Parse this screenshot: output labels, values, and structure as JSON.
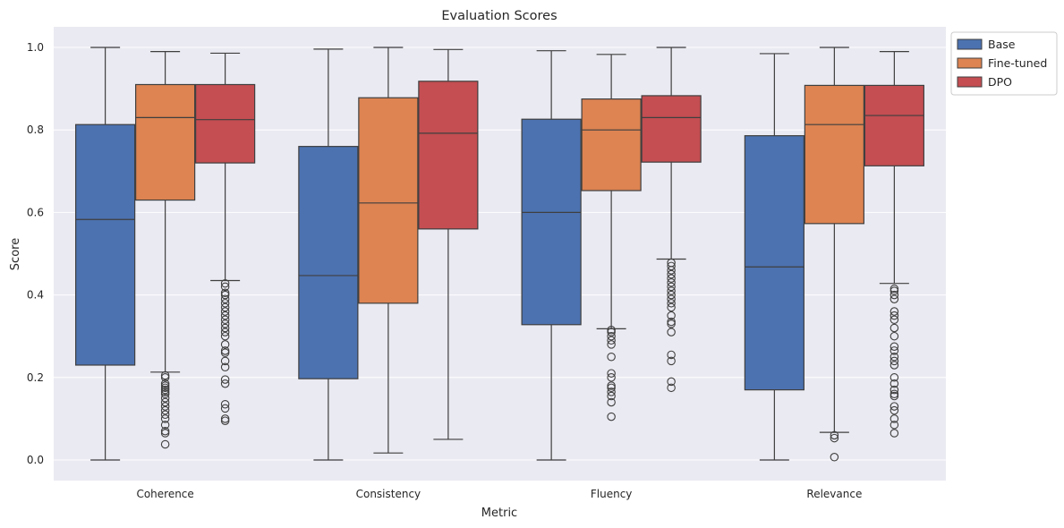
{
  "chart_data": {
    "type": "box",
    "title": "Evaluation Scores",
    "xlabel": "Metric",
    "ylabel": "Score",
    "ylim": [
      -0.05,
      1.05
    ],
    "yticks": [
      "0.0",
      "0.2",
      "0.4",
      "0.6",
      "0.8",
      "1.0"
    ],
    "categories": [
      "Coherence",
      "Consistency",
      "Fluency",
      "Relevance"
    ],
    "grid": true,
    "legend_position": "outside top-right",
    "series": [
      {
        "name": "Base",
        "color": "#4C72B0",
        "boxes": [
          {
            "whislo": 0.0,
            "q1": 0.23,
            "med": 0.583,
            "q3": 0.813,
            "whishi": 1.0,
            "fliers": []
          },
          {
            "whislo": 0.0,
            "q1": 0.197,
            "med": 0.447,
            "q3": 0.76,
            "whishi": 0.996,
            "fliers": []
          },
          {
            "whislo": 0.0,
            "q1": 0.328,
            "med": 0.6,
            "q3": 0.826,
            "whishi": 0.992,
            "fliers": []
          },
          {
            "whislo": 0.0,
            "q1": 0.17,
            "med": 0.468,
            "q3": 0.786,
            "whishi": 0.985,
            "fliers": []
          }
        ]
      },
      {
        "name": "Fine-tuned",
        "color": "#DD8452",
        "boxes": [
          {
            "whislo": 0.213,
            "q1": 0.63,
            "med": 0.83,
            "q3": 0.91,
            "whishi": 0.99,
            "fliers": [
              0.205,
              0.2,
              0.185,
              0.18,
              0.175,
              0.17,
              0.165,
              0.16,
              0.15,
              0.14,
              0.13,
              0.12,
              0.11,
              0.1,
              0.085,
              0.07,
              0.065,
              0.038
            ]
          },
          {
            "whislo": 0.017,
            "q1": 0.38,
            "med": 0.623,
            "q3": 0.878,
            "whishi": 1.0,
            "fliers": []
          },
          {
            "whislo": 0.318,
            "q1": 0.653,
            "med": 0.8,
            "q3": 0.875,
            "whishi": 0.983,
            "fliers": [
              0.315,
              0.31,
              0.3,
              0.29,
              0.28,
              0.25,
              0.21,
              0.2,
              0.18,
              0.175,
              0.165,
              0.155,
              0.14,
              0.105
            ]
          },
          {
            "whislo": 0.067,
            "q1": 0.573,
            "med": 0.813,
            "q3": 0.908,
            "whishi": 1.0,
            "fliers": [
              0.06,
              0.053,
              0.007
            ]
          }
        ]
      },
      {
        "name": "DPO",
        "color": "#C44E52",
        "boxes": [
          {
            "whislo": 0.435,
            "q1": 0.72,
            "med": 0.825,
            "q3": 0.91,
            "whishi": 0.986,
            "fliers": [
              0.428,
              0.42,
              0.405,
              0.4,
              0.39,
              0.38,
              0.37,
              0.36,
              0.35,
              0.34,
              0.33,
              0.32,
              0.31,
              0.3,
              0.28,
              0.265,
              0.26,
              0.24,
              0.225,
              0.195,
              0.185,
              0.135,
              0.125,
              0.1,
              0.095
            ]
          },
          {
            "whislo": 0.05,
            "q1": 0.56,
            "med": 0.792,
            "q3": 0.918,
            "whishi": 0.995,
            "fliers": []
          },
          {
            "whislo": 0.487,
            "q1": 0.722,
            "med": 0.83,
            "q3": 0.883,
            "whishi": 1.0,
            "fliers": [
              0.478,
              0.47,
              0.46,
              0.45,
              0.44,
              0.43,
              0.42,
              0.41,
              0.4,
              0.39,
              0.38,
              0.37,
              0.35,
              0.335,
              0.33,
              0.31,
              0.255,
              0.24,
              0.19,
              0.175
            ]
          },
          {
            "whislo": 0.428,
            "q1": 0.713,
            "med": 0.835,
            "q3": 0.908,
            "whishi": 0.99,
            "fliers": [
              0.415,
              0.41,
              0.4,
              0.39,
              0.36,
              0.35,
              0.34,
              0.32,
              0.3,
              0.275,
              0.265,
              0.25,
              0.24,
              0.23,
              0.2,
              0.185,
              0.17,
              0.16,
              0.155,
              0.13,
              0.12,
              0.1,
              0.085,
              0.065
            ]
          }
        ]
      }
    ]
  }
}
